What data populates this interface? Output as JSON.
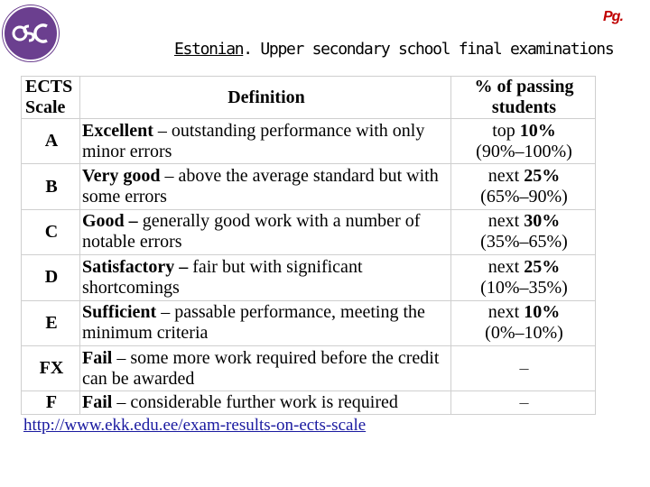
{
  "header": {
    "page_marker": "Pg.",
    "title_underlined": "Estonian",
    "title_rest": ". Upper secondary school final examinations"
  },
  "colors": {
    "logo_bg": "#6b3f8f",
    "page_marker": "#c00000",
    "link": "#1a1aa0",
    "grid": "#cfcfcf"
  },
  "icons": {
    "logo": "university-logo-icon"
  },
  "table": {
    "headers": {
      "scale_line1": "ECTS",
      "scale_line2": "Scale",
      "definition": "Definition",
      "pct_line1": "% of passing",
      "pct_line2": "students"
    },
    "rows": [
      {
        "grade": "A",
        "term": "Excellent",
        "rest": " – outstanding performance with only minor errors",
        "pct_bold_prefix": "top ",
        "pct_bold_value": "10%",
        "pct_range": "(90%–100%)"
      },
      {
        "grade": "B",
        "term": "Very good",
        "rest": " – above the average standard but with some errors",
        "pct_bold_prefix": "next ",
        "pct_bold_value": "25%",
        "pct_range": "(65%–90%)"
      },
      {
        "grade": "C",
        "term": "Good –",
        "rest": " generally good work with a number of notable errors",
        "pct_bold_prefix": "next ",
        "pct_bold_value": "30%",
        "pct_range": "(35%–65%)"
      },
      {
        "grade": "D",
        "term": "Satisfactory –",
        "rest": " fair but with significant shortcomings",
        "pct_bold_prefix": "next ",
        "pct_bold_value": "25%",
        "pct_range": "(10%–35%)"
      },
      {
        "grade": "E",
        "term": "Sufficient",
        "rest": " – passable performance, meeting the minimum criteria",
        "pct_bold_prefix": "next ",
        "pct_bold_value": "10%",
        "pct_range": "(0%–10%)"
      },
      {
        "grade": "FX",
        "term": "Fail",
        "rest": " – some more work required before the credit can be awarded",
        "dash": "–"
      },
      {
        "grade": "F",
        "term": "Fail",
        "rest": " – considerable further work is required",
        "dash": "–"
      }
    ]
  },
  "source_link": "http://www.ekk.edu.ee/exam-results-on-ects-scale"
}
